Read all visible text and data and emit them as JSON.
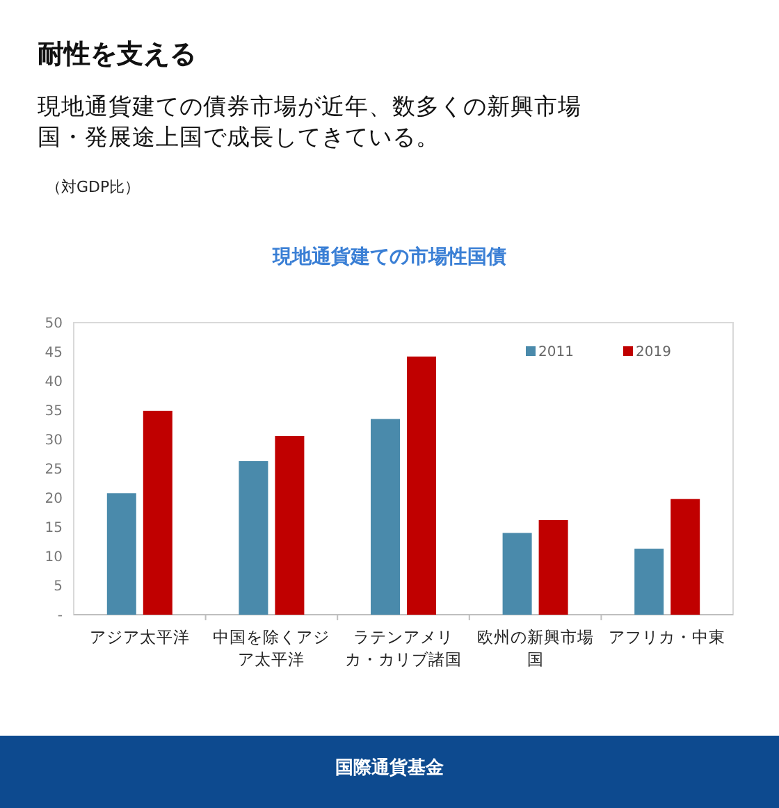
{
  "chart_data": {
    "type": "bar",
    "title": "現地通貨建ての市場性国債",
    "annotations": [
      "耐性を支える",
      "現地通貨建ての債券市場が近年、数多くの新興市場国・発展途上国で成長してきている。",
      "国際通貨基金",
      "（対GDP比）"
    ],
    "categories": [
      "アジア太平洋",
      "中国を除くアジア太平洋",
      "ラテンアメリカ・カリブ諸国",
      "欧州の新興市場国",
      "アフリカ・中東"
    ],
    "series": [
      {
        "name": "2011",
        "color": "#4a8aab",
        "values": [
          20.8,
          26.3,
          33.5,
          14.0,
          11.3
        ]
      },
      {
        "name": "2019",
        "color": "#c00000",
        "values": [
          34.9,
          30.6,
          44.2,
          16.2,
          19.8
        ]
      }
    ],
    "ylim": [
      0,
      50
    ],
    "yticks": [
      {
        "value": 0,
        "label": "-"
      },
      5,
      10,
      15,
      20,
      25,
      30,
      35,
      40,
      45,
      50
    ],
    "grid": false,
    "legend": "top right"
  }
}
